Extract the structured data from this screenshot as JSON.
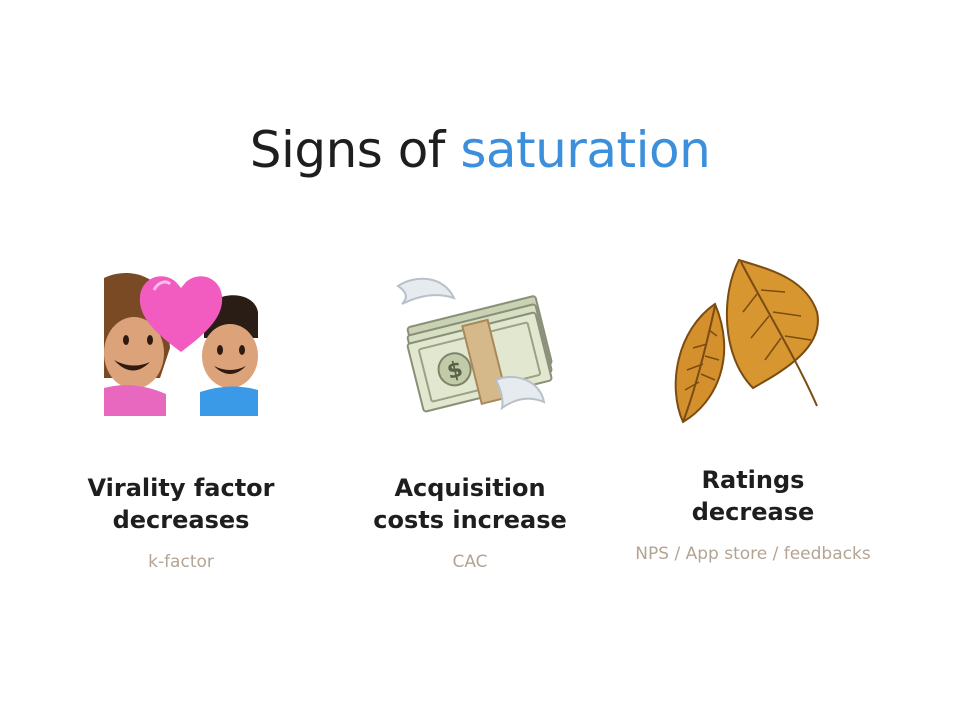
{
  "title": {
    "prefix": "Signs of",
    "accent": "saturation"
  },
  "colors": {
    "accent": "#3b8fdb",
    "text": "#1e1e1e",
    "subtext": "#b3a494"
  },
  "items": [
    {
      "icon": "couple-with-heart-icon",
      "heading_line1": "Virality factor",
      "heading_line2": "decreases",
      "subtitle": "k-factor"
    },
    {
      "icon": "money-with-wings-icon",
      "heading_line1": "Acquisition",
      "heading_line2": "costs increase",
      "subtitle": "CAC"
    },
    {
      "icon": "fallen-leaves-icon",
      "heading_line1": "Ratings",
      "heading_line2": "decrease",
      "subtitle": "NPS / App store / feedbacks"
    }
  ]
}
